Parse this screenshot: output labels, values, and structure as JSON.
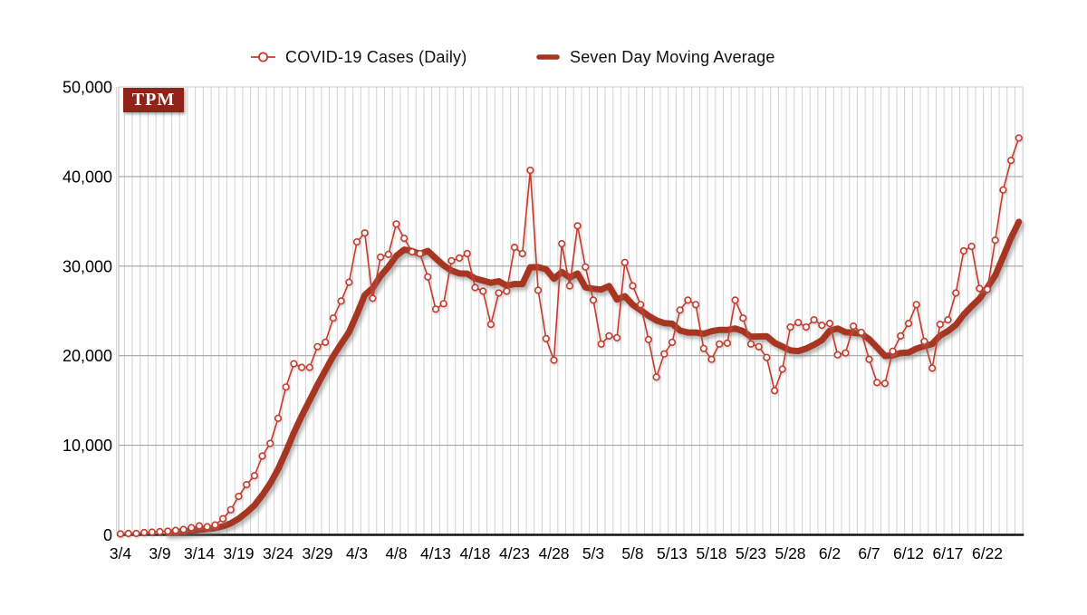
{
  "page": {
    "background": "#ffffff"
  },
  "branding": {
    "logo_text": "TPM",
    "logo_bg": "#8e2318",
    "logo_fg": "#ffffff"
  },
  "legend": {
    "items": [
      {
        "label": "COVID-19 Cases (Daily)",
        "marker": "open-circle-on-line",
        "color": "#c63a2a"
      },
      {
        "label": "Seven Day Moving Average",
        "marker": "thick-dash",
        "color": "#a63522"
      }
    ]
  },
  "chart_data": {
    "type": "line",
    "title": "",
    "xlabel": "",
    "ylabel": "",
    "x": [
      "3/4",
      "3/5",
      "3/6",
      "3/7",
      "3/8",
      "3/9",
      "3/10",
      "3/11",
      "3/12",
      "3/13",
      "3/14",
      "3/15",
      "3/16",
      "3/17",
      "3/18",
      "3/19",
      "3/20",
      "3/21",
      "3/22",
      "3/23",
      "3/24",
      "3/25",
      "3/26",
      "3/27",
      "3/28",
      "3/29",
      "3/30",
      "3/31",
      "4/1",
      "4/2",
      "4/3",
      "4/4",
      "4/5",
      "4/6",
      "4/7",
      "4/8",
      "4/9",
      "4/10",
      "4/11",
      "4/12",
      "4/13",
      "4/14",
      "4/15",
      "4/16",
      "4/17",
      "4/18",
      "4/19",
      "4/20",
      "4/21",
      "4/22",
      "4/23",
      "4/24",
      "4/25",
      "4/26",
      "4/27",
      "4/28",
      "4/29",
      "4/30",
      "5/1",
      "5/2",
      "5/3",
      "5/4",
      "5/5",
      "5/6",
      "5/7",
      "5/8",
      "5/9",
      "5/10",
      "5/11",
      "5/12",
      "5/13",
      "5/14",
      "5/15",
      "5/16",
      "5/17",
      "5/18",
      "5/19",
      "5/20",
      "5/21",
      "5/22",
      "5/23",
      "5/24",
      "5/25",
      "5/26",
      "5/27",
      "5/28",
      "5/29",
      "5/30",
      "5/31",
      "6/1",
      "6/2",
      "6/3",
      "6/4",
      "6/5",
      "6/6",
      "6/7",
      "6/8",
      "6/9",
      "6/10",
      "6/11",
      "6/12",
      "6/13",
      "6/14",
      "6/15",
      "6/16",
      "6/17",
      "6/18",
      "6/19",
      "6/20",
      "6/21",
      "6/22",
      "6/23",
      "6/24",
      "6/25",
      "6/26"
    ],
    "series": [
      {
        "name": "COVID-19 Cases (Daily)",
        "style": "thin-line-open-circle-markers",
        "color": "#c63a2a",
        "values": [
          100,
          150,
          150,
          250,
          300,
          350,
          400,
          500,
          600,
          800,
          1000,
          900,
          1100,
          1800,
          2800,
          4300,
          5600,
          6600,
          8800,
          10200,
          13000,
          16500,
          19100,
          18700,
          18700,
          21000,
          21500,
          24200,
          26100,
          28200,
          32700,
          33700,
          26400,
          31000,
          31300,
          34700,
          33100,
          31600,
          31400,
          28800,
          25200,
          25800,
          30600,
          30900,
          31400,
          27600,
          27200,
          23500,
          27000,
          27200,
          32100,
          31400,
          40700,
          27300,
          21900,
          19500,
          32500,
          27800,
          34500,
          29900,
          26200,
          21300,
          22200,
          22000,
          30400,
          27800,
          25700,
          21800,
          17600,
          20200,
          21500,
          25100,
          26200,
          25700,
          20800,
          19600,
          21300,
          21400,
          26200,
          24200,
          21300,
          21000,
          19800,
          16100,
          18500,
          23200,
          23700,
          23200,
          24000,
          23400,
          23600,
          20100,
          20300,
          23300,
          22600,
          19600,
          17000,
          16900,
          20500,
          22200,
          23600,
          25700,
          21600,
          18600,
          23500,
          24000,
          27000,
          31700,
          32200,
          27500,
          27400,
          32900,
          38500,
          41800,
          44300
        ]
      },
      {
        "name": "Seven Day Moving Average",
        "style": "thick-line",
        "color": "#a63522",
        "derived_from": "COVID-19 Cases (Daily)",
        "window": 7,
        "note": "trailing 7-day mean of the daily series, drawn from the 7th day onward"
      }
    ],
    "ylim": [
      0,
      50000
    ],
    "y_ticks": [
      0,
      10000,
      20000,
      30000,
      40000,
      50000
    ],
    "y_tick_labels": [
      "0",
      "10,000",
      "20,000",
      "30,000",
      "40,000",
      "50,000"
    ],
    "x_tick_labels": [
      "3/4",
      "3/9",
      "3/14",
      "3/19",
      "3/24",
      "3/29",
      "4/3",
      "4/8",
      "4/13",
      "4/18",
      "4/23",
      "4/28",
      "5/3",
      "5/8",
      "5/13",
      "5/18",
      "5/23",
      "5/28",
      "6/2",
      "6/7",
      "6/12",
      "6/17",
      "6/22"
    ],
    "x_tick_every": 5,
    "grid": {
      "vertical": "one line per day, light gray",
      "horizontal": "every 10,000, gray"
    },
    "legend_position": "top-center"
  }
}
